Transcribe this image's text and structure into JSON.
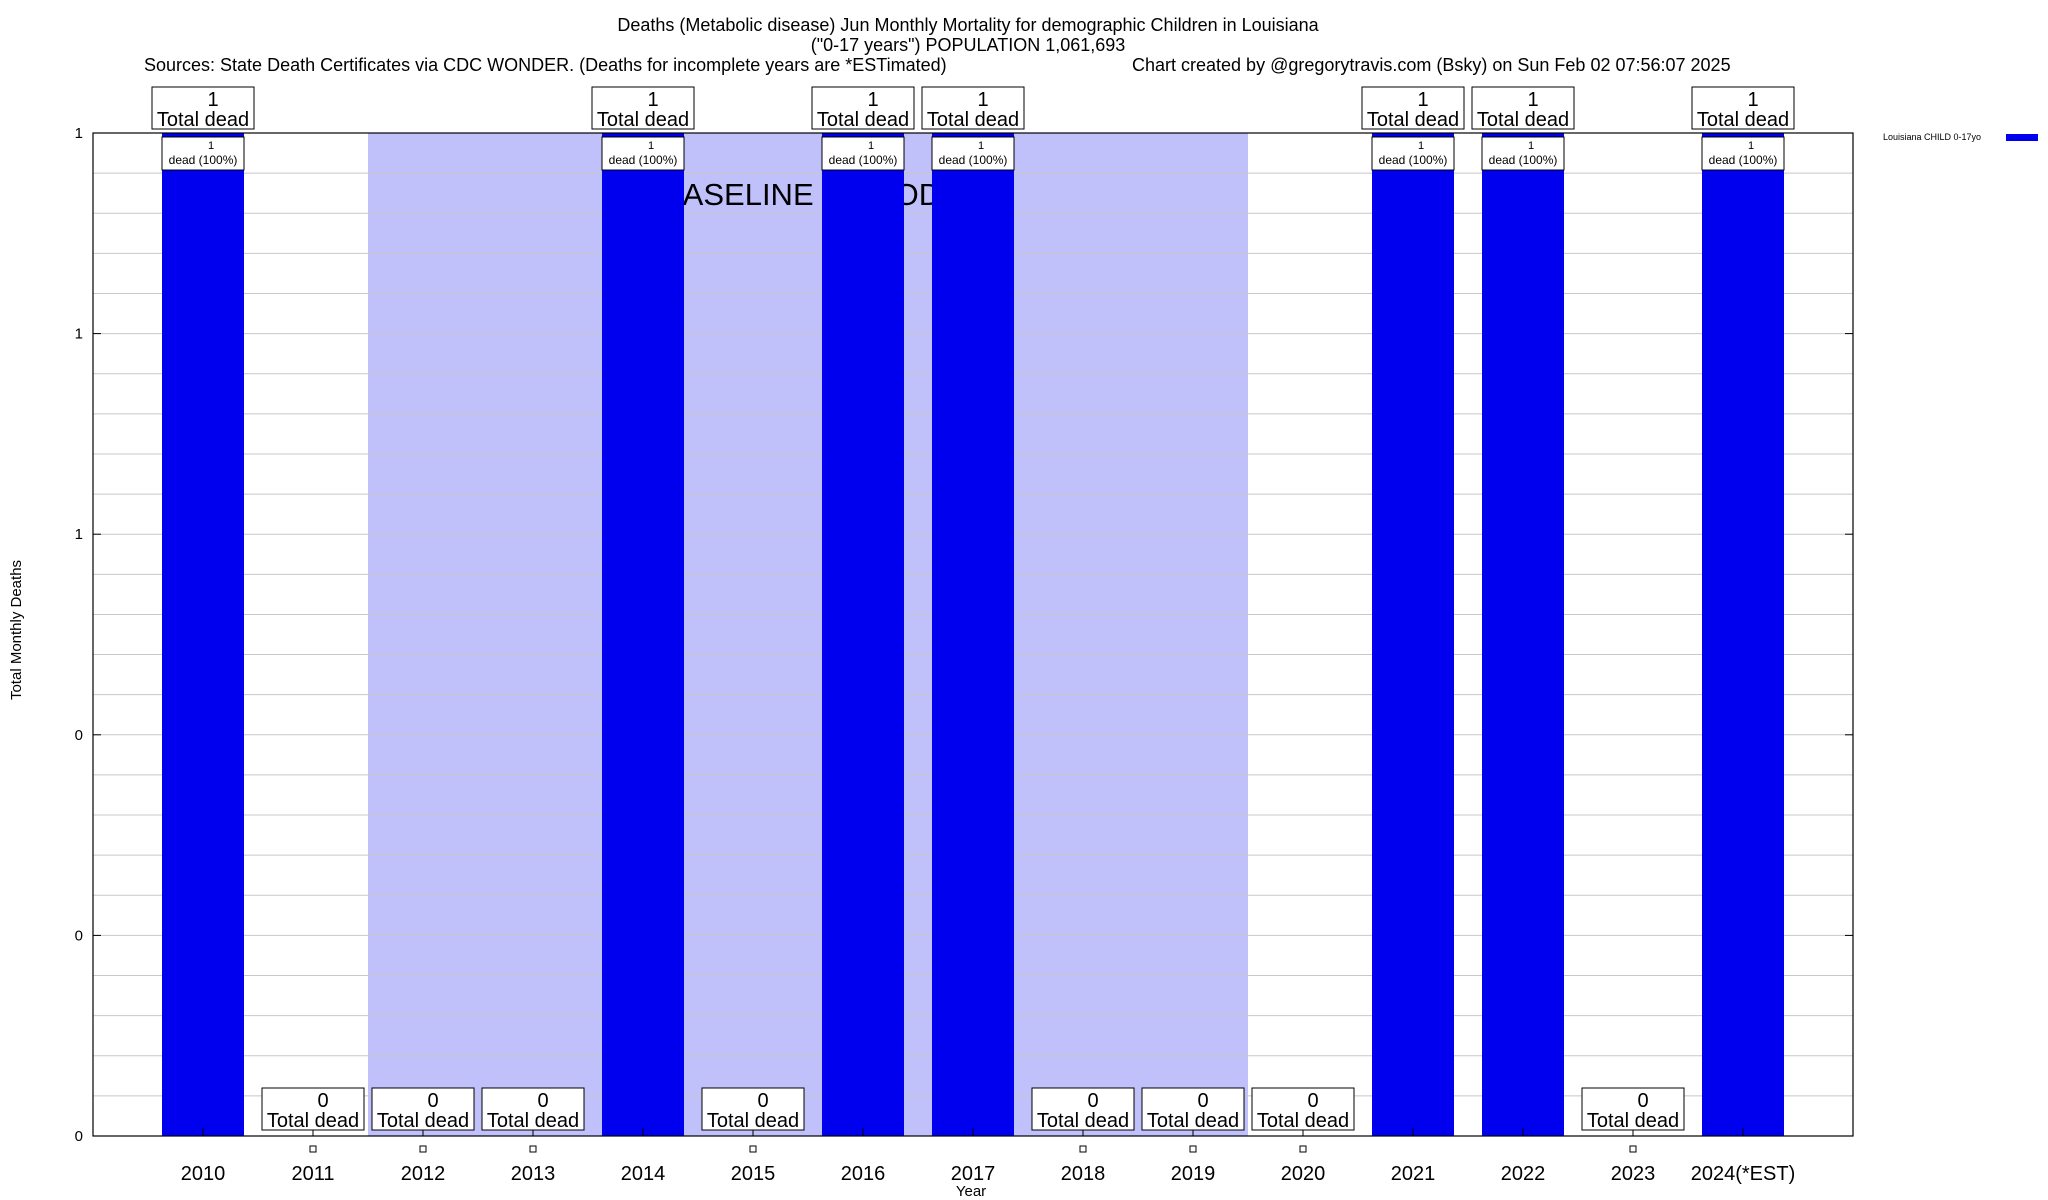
{
  "header": {
    "title_line1": "Deaths (Metabolic disease) Jun Monthly Mortality for demographic Children in Louisiana",
    "title_line2": "(\"0-17 years\") POPULATION 1,061,693",
    "sources": "Sources: State Death Certificates via CDC WONDER. (Deaths for incomplete years are *ESTimated)",
    "credit": "Chart created by @gregorytravis.com (Bsky) on Sun Feb 02 07:56:07 2025"
  },
  "chart_data": {
    "type": "bar",
    "xlabel": "Year",
    "ylabel": "Total Monthly Deaths",
    "ylim": [
      0,
      1
    ],
    "y_tick_labels": [
      "0",
      "0",
      "0",
      "1",
      "1",
      "1"
    ],
    "grid": true,
    "legend_position": "top-right",
    "categories": [
      "2010",
      "2011",
      "2012",
      "2013",
      "2014",
      "2015",
      "2016",
      "2017",
      "2018",
      "2019",
      "2020",
      "2021",
      "2022",
      "2023",
      "2024(*EST)"
    ],
    "series": [
      {
        "name": "Louisiana CHILD 0-17yo",
        "color": "#0000ee",
        "values": [
          1,
          0,
          0,
          0,
          1,
          0,
          1,
          1,
          0,
          0,
          0,
          1,
          1,
          0,
          1
        ]
      }
    ],
    "total_labels": [
      "1",
      "0",
      "0",
      "0",
      "1",
      "0",
      "1",
      "1",
      "0",
      "0",
      "0",
      "1",
      "1",
      "0",
      "1"
    ],
    "total_suffix": "Total dead",
    "bar_labels": [
      "1",
      "",
      "",
      "",
      "1",
      "",
      "1",
      "1",
      "",
      "",
      "",
      "1",
      "1",
      "",
      "1"
    ],
    "bar_sublabel": "dead (100%)",
    "baseline_period": {
      "label": "BASELINE PERIOD",
      "ranges": [
        [
          "2012",
          "2019"
        ]
      ],
      "color": "#c0c0fa"
    }
  }
}
